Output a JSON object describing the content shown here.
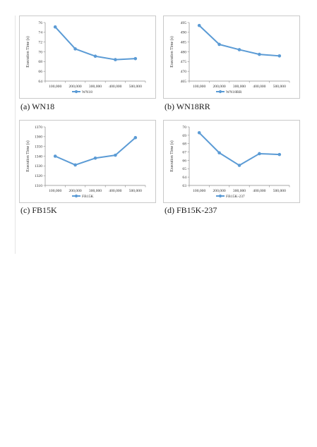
{
  "figure": {
    "panels": [
      {
        "caption": "(a) WN18"
      },
      {
        "caption": "(b) WN18RR"
      },
      {
        "caption": "(c) FB15K"
      },
      {
        "caption": "(d) FB15K-237"
      }
    ]
  },
  "chart_data": [
    {
      "type": "line",
      "categories": [
        "100,000",
        "200,000",
        "300,000",
        "400,000",
        "500,000"
      ],
      "series": [
        {
          "name": "WN18",
          "values": [
            75.1,
            70.6,
            69.1,
            68.4,
            68.6
          ]
        }
      ],
      "ylabel": "Execution Time (s)",
      "ylim": [
        64,
        76
      ],
      "yticks": [
        64,
        66,
        68,
        70,
        72,
        74,
        76
      ],
      "ytick_labels": [
        "64",
        "66",
        "68",
        "70",
        "72",
        "74",
        "76"
      ],
      "grid": false,
      "legend": "bottom",
      "color": "#5b9bd5"
    },
    {
      "type": "line",
      "categories": [
        "100,000",
        "200,000",
        "300,000",
        "400,000",
        "500,000"
      ],
      "series": [
        {
          "name": "WN18RR",
          "values": [
            493.5,
            483.8,
            481.1,
            478.7,
            477.9
          ]
        }
      ],
      "ylabel": "Execution Time (s)",
      "ylim": [
        465,
        495
      ],
      "yticks": [
        465,
        470,
        475,
        480,
        485,
        490,
        495
      ],
      "ytick_labels": [
        "465",
        "470",
        "475",
        "480",
        "485",
        "490",
        "495"
      ],
      "grid": false,
      "legend": "bottom",
      "color": "#5b9bd5"
    },
    {
      "type": "line",
      "categories": [
        "100,000",
        "200,000",
        "300,000",
        "400,000",
        "500,000"
      ],
      "series": [
        {
          "name": "FB15K",
          "values": [
            1340,
            1331,
            1338,
            1341,
            1359
          ]
        }
      ],
      "ylabel": "Execution Time (s)",
      "ylim": [
        1310,
        1370
      ],
      "yticks": [
        1310,
        1320,
        1330,
        1340,
        1350,
        1360,
        1370
      ],
      "ytick_labels": [
        "1310",
        "1320",
        "1330",
        "1340",
        "1350",
        "1360",
        "1370"
      ],
      "grid": false,
      "legend": "bottom",
      "color": "#5b9bd5"
    },
    {
      "type": "line",
      "categories": [
        "100,000",
        "200,000",
        "300,000",
        "400,000",
        "500,000"
      ],
      "series": [
        {
          "name": "FB15K-237",
          "values": [
            69.3,
            66.9,
            65.4,
            66.8,
            66.7
          ]
        }
      ],
      "ylabel": "Execution Time (s)",
      "ylim": [
        63,
        70
      ],
      "yticks": [
        63,
        64,
        65,
        66,
        67,
        68,
        69,
        70
      ],
      "ytick_labels": [
        "63",
        "64",
        "65",
        "66",
        "67",
        "68",
        "69",
        "70"
      ],
      "grid": false,
      "legend": "bottom",
      "color": "#5b9bd5"
    }
  ]
}
